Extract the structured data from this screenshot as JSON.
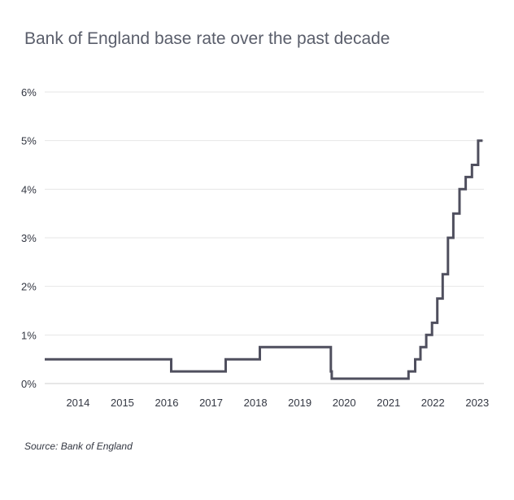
{
  "chart_data": {
    "type": "line",
    "subtype": "step",
    "title": "Bank of England base rate over the past decade",
    "source": "Source: Bank of England",
    "xlabel": "",
    "ylabel": "",
    "x_tick_labels": [
      "2014",
      "2015",
      "2016",
      "2017",
      "2018",
      "2019",
      "2020",
      "2021",
      "2022",
      "2023"
    ],
    "x_ticks": [
      2014,
      2015,
      2016,
      2017,
      2018,
      2019,
      2020,
      2021,
      2022,
      2023
    ],
    "y_tick_labels": [
      "0%",
      "1%",
      "2%",
      "3%",
      "4%",
      "5%",
      "6%"
    ],
    "y_ticks": [
      0,
      1,
      2,
      3,
      4,
      5,
      6
    ],
    "xlim": [
      2013.25,
      2023.15
    ],
    "ylim": [
      0,
      6
    ],
    "grid": "horizontal",
    "colors": {
      "line": "#4f4f5e",
      "grid": "#e6e6e6",
      "axis": "#cfcfcf"
    },
    "series": [
      {
        "values": [
          {
            "x": 2013.25,
            "y": 0.5
          },
          {
            "x": 2016.1,
            "y": 0.25
          },
          {
            "x": 2017.33,
            "y": 0.5
          },
          {
            "x": 2018.1,
            "y": 0.75
          },
          {
            "x": 2019.7,
            "y": 0.25
          },
          {
            "x": 2019.72,
            "y": 0.1
          },
          {
            "x": 2021.45,
            "y": 0.25
          },
          {
            "x": 2021.6,
            "y": 0.5
          },
          {
            "x": 2021.72,
            "y": 0.75
          },
          {
            "x": 2021.85,
            "y": 1.0
          },
          {
            "x": 2021.98,
            "y": 1.25
          },
          {
            "x": 2022.1,
            "y": 1.75
          },
          {
            "x": 2022.22,
            "y": 2.25
          },
          {
            "x": 2022.34,
            "y": 3.0
          },
          {
            "x": 2022.46,
            "y": 3.5
          },
          {
            "x": 2022.6,
            "y": 4.0
          },
          {
            "x": 2022.74,
            "y": 4.25
          },
          {
            "x": 2022.88,
            "y": 4.5
          },
          {
            "x": 2023.02,
            "y": 5.0
          },
          {
            "x": 2023.12,
            "y": 5.0
          }
        ]
      }
    ]
  }
}
